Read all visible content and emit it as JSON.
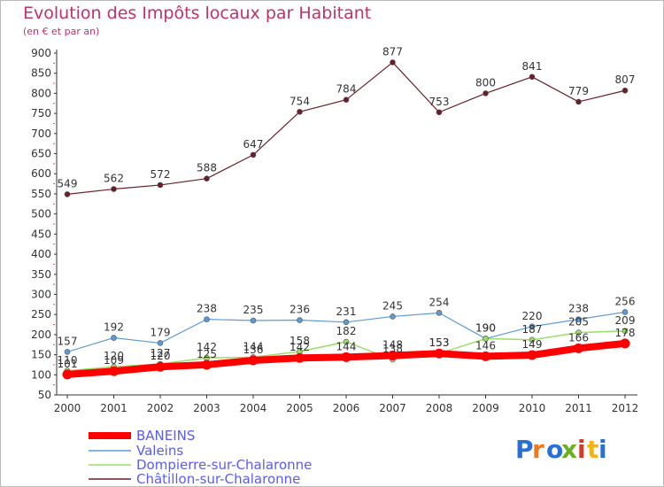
{
  "chart_data": {
    "type": "line",
    "title": "Evolution des Impôts locaux par Habitant",
    "subtitle": "(en € et par an)",
    "xlabel": "",
    "ylabel": "",
    "ylim": [
      50,
      900
    ],
    "yticks": [
      50,
      100,
      150,
      200,
      250,
      300,
      350,
      400,
      450,
      500,
      550,
      600,
      650,
      700,
      750,
      800,
      850,
      900
    ],
    "categories": [
      "2000",
      "2001",
      "2002",
      "2003",
      "2004",
      "2005",
      "2006",
      "2007",
      "2008",
      "2009",
      "2010",
      "2011",
      "2012"
    ],
    "grid": false,
    "legend_position": "bottom-left",
    "series": [
      {
        "name": "BANEINS",
        "color": "#ff0000",
        "values": [
          101,
          109,
          120,
          125,
          136,
          142,
          144,
          148,
          153,
          146,
          149,
          166,
          178
        ]
      },
      {
        "name": "Valeins",
        "color": "#5b9bd5",
        "values": [
          157,
          192,
          179,
          238,
          235,
          236,
          231,
          245,
          254,
          190,
          220,
          238,
          256
        ]
      },
      {
        "name": "Dompierre-sur-Chalaronne",
        "color": "#99dd66",
        "values": [
          110,
          120,
          127,
          142,
          144,
          158,
          182,
          138,
          153,
          190,
          187,
          205,
          209
        ]
      },
      {
        "name": "Châtillon-sur-Chalaronne",
        "color": "#6b1e2a",
        "values": [
          549,
          562,
          572,
          588,
          647,
          754,
          784,
          877,
          753,
          800,
          841,
          779,
          807
        ]
      }
    ]
  },
  "logo": {
    "letters": [
      "P",
      "r",
      "o",
      "x",
      "i",
      "t",
      "i"
    ],
    "colors": [
      "#2a6fd6",
      "#f07a1a",
      "#2a6fd6",
      "#6ab023",
      "#d63a2a",
      "#f0b41a",
      "#2a6fd6"
    ]
  }
}
